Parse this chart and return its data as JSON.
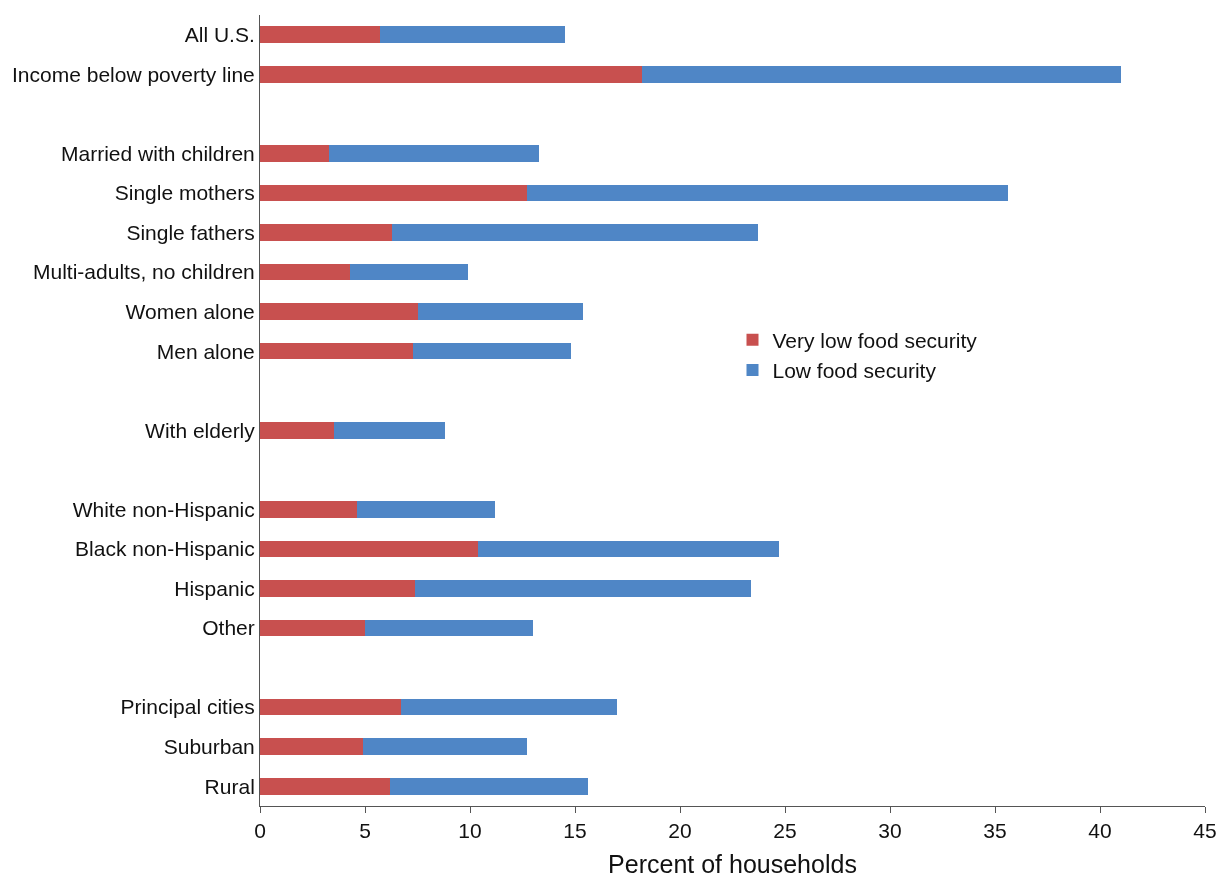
{
  "chart_data": {
    "type": "bar",
    "orientation": "horizontal",
    "stacked": true,
    "xlabel": "Percent of households",
    "categories": [
      "All U.S.",
      "Income below poverty line",
      null,
      "Married with children",
      "Single mothers",
      "Single fathers",
      "Multi-adults, no children",
      "Women alone",
      "Men alone",
      null,
      "With elderly",
      null,
      "White non-Hispanic",
      "Black non-Hispanic",
      "Hispanic",
      "Other",
      null,
      "Principal cities",
      "Suburban",
      "Rural"
    ],
    "series": [
      {
        "name": "Very low food security",
        "color": "#c8504f",
        "values": [
          5.7,
          18.2,
          null,
          3.3,
          12.7,
          6.3,
          4.3,
          7.5,
          7.3,
          null,
          3.5,
          null,
          4.6,
          10.4,
          7.4,
          5.0,
          null,
          6.7,
          4.9,
          6.2
        ]
      },
      {
        "name": "Low food security",
        "color": "#4f86c6",
        "values": [
          8.8,
          22.8,
          null,
          10.0,
          22.9,
          17.4,
          5.6,
          7.9,
          7.5,
          null,
          5.3,
          null,
          6.6,
          14.3,
          16.0,
          8.0,
          null,
          10.3,
          7.8,
          9.4
        ]
      }
    ],
    "xlim": [
      0,
      45
    ],
    "xticks": [
      0,
      5,
      10,
      15,
      20,
      25,
      30,
      35,
      40,
      45
    ],
    "legend": "right"
  }
}
